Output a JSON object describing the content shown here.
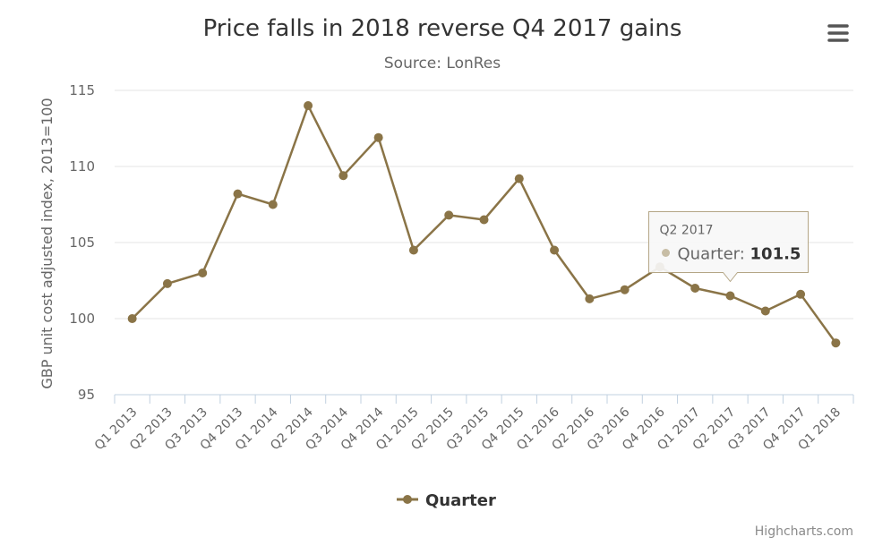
{
  "chart_data": {
    "type": "line",
    "title": "Price falls in 2018 reverse Q4 2017 gains",
    "subtitle": "Source: LonRes",
    "ylabel": "GBP unit cost adjusted index, 2013=100",
    "xlabel": "",
    "ylim": [
      95,
      115
    ],
    "yticks": [
      95,
      100,
      105,
      110,
      115
    ],
    "grid": true,
    "legend_position": "bottom-center",
    "categories": [
      "Q1 2013",
      "Q2 2013",
      "Q3 2013",
      "Q4 2013",
      "Q1 2014",
      "Q2 2014",
      "Q3 2014",
      "Q4 2014",
      "Q1 2015",
      "Q2 2015",
      "Q3 2015",
      "Q4 2015",
      "Q1 2016",
      "Q2 2016",
      "Q3 2016",
      "Q4 2016",
      "Q1 2017",
      "Q2 2017",
      "Q3 2017",
      "Q4 2017",
      "Q1 2018"
    ],
    "series": [
      {
        "name": "Quarter",
        "color": "#8a7447",
        "values": [
          100.0,
          102.3,
          103.0,
          108.2,
          107.5,
          114.0,
          109.4,
          111.9,
          104.5,
          106.8,
          106.5,
          109.2,
          104.5,
          101.3,
          101.9,
          103.4,
          102.0,
          101.5,
          100.5,
          101.6,
          98.4
        ]
      }
    ],
    "tooltip": {
      "category": "Q2 2017",
      "series_name": "Quarter",
      "separator": ":",
      "value": "101.5"
    }
  },
  "menu": {
    "icon": "hamburger-menu-icon"
  },
  "credits": {
    "text": "Highcharts.com"
  }
}
